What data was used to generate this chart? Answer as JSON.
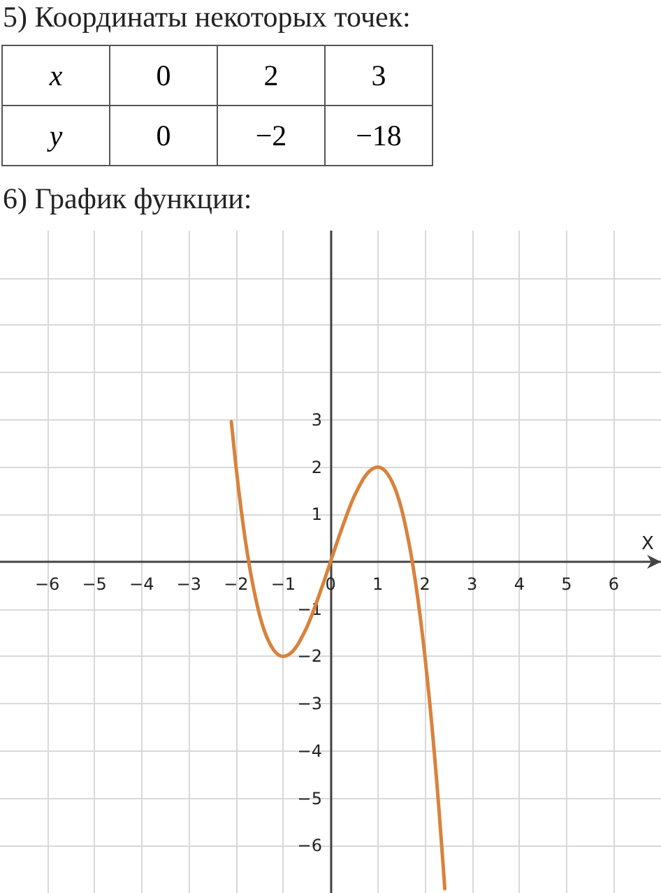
{
  "chart_data": {
    "type": "line",
    "title": "6) График функции:",
    "xlabel": "X",
    "annotations": [
      "5) Координаты некоторых точек:",
      "x",
      "0",
      "2",
      "3",
      "y",
      "0",
      "−2",
      "−18"
    ],
    "series": [
      {
        "color": "#d9823b",
        "x": [
          -2.1,
          -2,
          -1.9,
          -1.8,
          -1.7,
          -1.6,
          -1.5,
          -1.4,
          -1.3,
          -1.2,
          -1.1,
          -1,
          -0.9,
          -0.8,
          -0.7,
          -0.6,
          -0.5,
          -0.4,
          -0.3,
          -0.2,
          -0.1,
          0,
          0.1,
          0.2,
          0.3,
          0.4,
          0.5,
          0.6,
          0.7,
          0.8,
          0.9,
          1,
          1.1,
          1.2,
          1.3,
          1.4,
          1.5,
          1.6,
          1.7,
          1.8,
          1.9,
          2,
          2.1,
          2.2,
          2.3,
          2.4,
          2.42
        ],
        "values": [
          2.96,
          2,
          1.16,
          0.43,
          -0.19,
          -0.7,
          -1.13,
          -1.46,
          -1.7,
          -1.87,
          -1.97,
          -2,
          -1.97,
          -1.89,
          -1.76,
          -1.58,
          -1.38,
          -1.14,
          -0.87,
          -0.59,
          -0.3,
          0,
          0.3,
          0.59,
          0.87,
          1.14,
          1.38,
          1.58,
          1.76,
          1.89,
          1.97,
          2,
          1.97,
          1.87,
          1.7,
          1.46,
          1.13,
          0.7,
          0.19,
          -0.43,
          -1.16,
          -2,
          -2.96,
          -4.05,
          -5.27,
          -6.62,
          -6.91
        ]
      }
    ],
    "xlim": [
      -7,
      7
    ],
    "ylim": [
      -7,
      7
    ],
    "xticks": [
      {
        "value": -6,
        "label": "−6"
      },
      {
        "value": -5,
        "label": "−5"
      },
      {
        "value": -4,
        "label": "−4"
      },
      {
        "value": -3,
        "label": "−3"
      },
      {
        "value": -2,
        "label": "−2"
      },
      {
        "value": -1,
        "label": "−1"
      },
      0,
      1,
      2,
      3,
      4,
      5,
      6
    ],
    "yticks": [
      {
        "value": -6,
        "label": "−6"
      },
      {
        "value": -5,
        "label": "−5"
      },
      {
        "value": -4,
        "label": "−4"
      },
      {
        "value": -3,
        "label": "−3"
      },
      {
        "value": -2,
        "label": "−2"
      },
      {
        "value": -1,
        "label": "−1"
      },
      1,
      2,
      3,
      {
        "value": 4,
        "label": null
      },
      {
        "value": 5,
        "label": null
      },
      {
        "value": 6,
        "label": null
      }
    ],
    "grid": true,
    "marker": "none",
    "line_style": "solid"
  }
}
